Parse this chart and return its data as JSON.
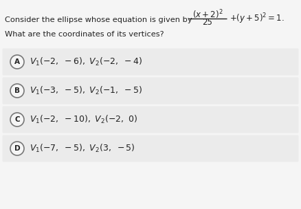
{
  "bg_color": "#f5f5f5",
  "box_color": "#ebebeb",
  "text_color": "#222222",
  "intro_text": "Consider the ellipse whose equation is given by",
  "question_text": "What are the coordinates of its vertices?",
  "labels": [
    "A",
    "B",
    "C",
    "D"
  ],
  "option_texts": [
    "V₁(−2, −6), V₂(−2, −4)",
    "V₁(−3, −5), V₂(−1, −5)",
    "V₁(−2, −10), V₂(−2, 0)",
    "V₁(−7, −5), V₂(3, −5)"
  ],
  "fig_width": 4.39,
  "fig_height": 3.04,
  "dpi": 100
}
